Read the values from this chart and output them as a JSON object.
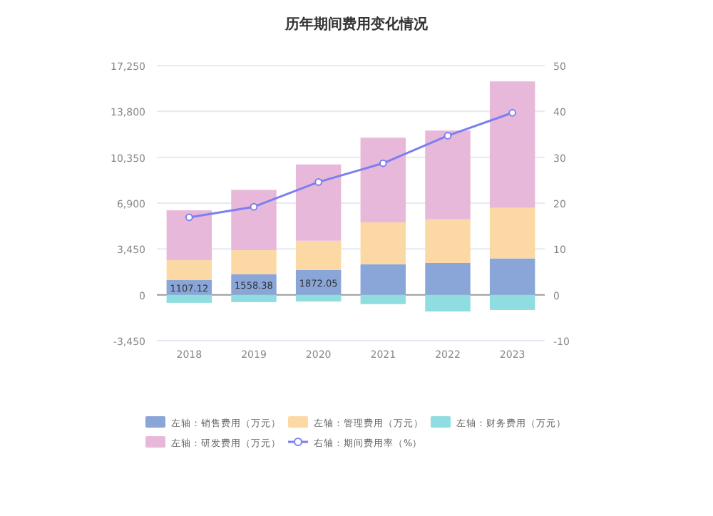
{
  "chart_data": {
    "type": "bar",
    "title": "历年期间费用变化情况",
    "stacked": true,
    "categories": [
      "2018",
      "2019",
      "2020",
      "2021",
      "2022",
      "2023"
    ],
    "ylim": [
      -3450,
      17250
    ],
    "yticks": [
      {
        "value": -3450,
        "label": "-3,450"
      },
      0,
      {
        "value": 3450,
        "label": "3,450"
      },
      {
        "value": 6900,
        "label": "6,900"
      },
      {
        "value": 10350,
        "label": "10,350"
      },
      {
        "value": 13800,
        "label": "13,800"
      },
      {
        "value": 17250,
        "label": "17,250"
      }
    ],
    "y2lim": [
      -10,
      50
    ],
    "y2ticks": [
      -10,
      0,
      10,
      20,
      30,
      40,
      50
    ],
    "grid": "y",
    "legend": "bottom",
    "marker": "circle",
    "series": [
      {
        "name": "左轴：销售费用（万元）",
        "color": "#8aa6d8",
        "values": [
          1107.12,
          1558.38,
          1872.05,
          2306,
          2400,
          2740
        ],
        "value_labels": [
          "1107.12",
          "1558.38",
          "1872.05",
          null,
          null,
          null
        ]
      },
      {
        "name": "左轴：管理费用（万元）",
        "color": "#fcd9a4",
        "values": [
          1500,
          1800,
          2200,
          3150,
          3280,
          3800
        ]
      },
      {
        "name": "左轴：财务费用（万元）",
        "color": "#8fdde0",
        "values": [
          -600,
          -550,
          -500,
          -700,
          -1250,
          -1140
        ]
      },
      {
        "name": "左轴：研发费用（万元）",
        "color": "#e8b8da",
        "values": [
          3750,
          4540,
          5740,
          6370,
          6680,
          9520
        ]
      },
      {
        "name": "右轴：期间费用率（%）",
        "type": "line",
        "axis": "y2",
        "color": "#7b7ff0",
        "values": [
          16.9,
          19.2,
          24.6,
          28.7,
          34.7,
          39.7
        ]
      }
    ]
  }
}
